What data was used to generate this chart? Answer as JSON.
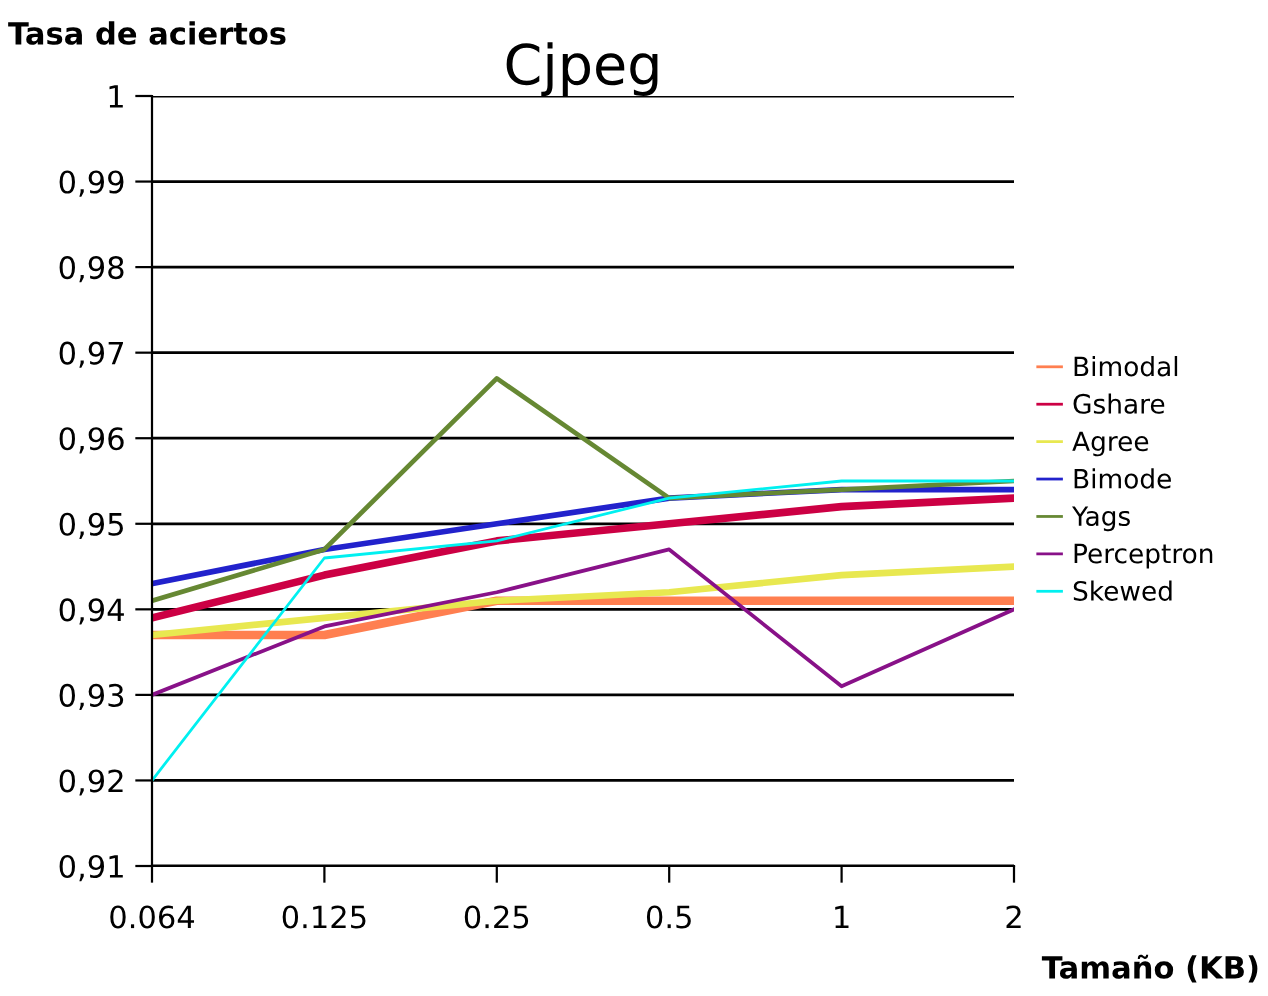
{
  "chart_data": {
    "type": "line",
    "title": "Cjpeg",
    "xlabel": "Tamaño (KB)",
    "ylabel": "Tasa de aciertos",
    "categories": [
      "0.064",
      "0.125",
      "0.25",
      "0.5",
      "1",
      "2"
    ],
    "ylim": [
      0.91,
      1
    ],
    "yticks": [
      {
        "value": 0.91,
        "label": "0,91"
      },
      {
        "value": 0.92,
        "label": "0,92"
      },
      {
        "value": 0.93,
        "label": "0,93"
      },
      {
        "value": 0.94,
        "label": "0,94"
      },
      {
        "value": 0.95,
        "label": "0,95"
      },
      {
        "value": 0.96,
        "label": "0,96"
      },
      {
        "value": 0.97,
        "label": "0,97"
      },
      {
        "value": 0.98,
        "label": "0,98"
      },
      {
        "value": 0.99,
        "label": "0,99"
      },
      {
        "value": 1,
        "label": "1"
      }
    ],
    "grid": "y",
    "legend": "right",
    "marker": "none",
    "line_style": "solid",
    "series": [
      {
        "name": "Bimodal",
        "color": "#ff7f50",
        "values": [
          0.937,
          0.937,
          0.941,
          0.941,
          0.941,
          0.941
        ]
      },
      {
        "name": "Gshare",
        "color": "#cc0044",
        "values": [
          0.939,
          0.944,
          0.948,
          0.95,
          0.952,
          0.953
        ]
      },
      {
        "name": "Agree",
        "color": "#e8e850",
        "values": [
          0.937,
          0.939,
          0.941,
          0.942,
          0.944,
          0.945
        ]
      },
      {
        "name": "Bimode",
        "color": "#2222cc",
        "values": [
          0.943,
          0.947,
          0.95,
          0.953,
          0.954,
          0.954
        ]
      },
      {
        "name": "Yags",
        "color": "#668833",
        "values": [
          0.941,
          0.947,
          0.967,
          0.953,
          0.954,
          0.955
        ]
      },
      {
        "name": "Perceptron",
        "color": "#881188",
        "values": [
          0.93,
          0.938,
          0.942,
          0.947,
          0.931,
          0.94
        ]
      },
      {
        "name": "Skewed",
        "color": "#00f0f0",
        "values": [
          0.92,
          0.946,
          0.948,
          0.953,
          0.955,
          0.955
        ]
      }
    ]
  }
}
